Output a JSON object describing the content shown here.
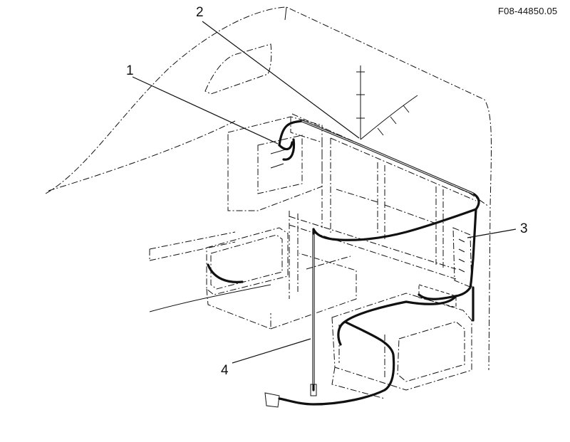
{
  "figure": {
    "id": "F08-44850.05",
    "callouts": [
      {
        "number": "1"
      },
      {
        "number": "2"
      },
      {
        "number": "3"
      },
      {
        "number": "4"
      }
    ]
  }
}
